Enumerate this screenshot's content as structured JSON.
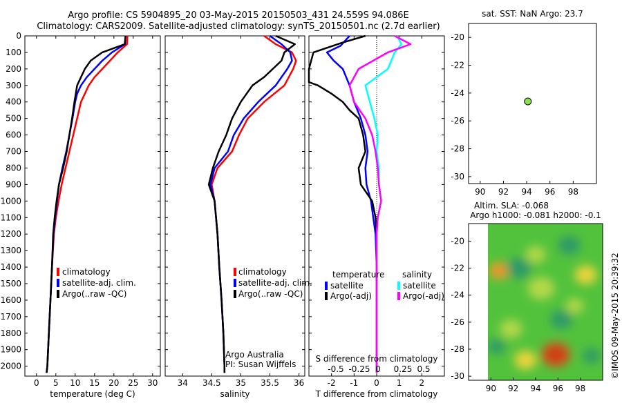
{
  "title_line1": "Argo profile: CS 5904895_20 03-May-2015 20150503_431 24.559S 94.086E",
  "title_line2": "Climatology: CARS2009. Satellite-adjusted climatology: synTS_20150501.nc (2.7d earlier)",
  "credit": "Argo Australia",
  "pi": "PI: Susan Wijffels",
  "stamp": "©IMOS 09-May-2015 20:39:32",
  "colors": {
    "climatology": "#ff0000",
    "satellite": "#0000ff",
    "argo": "#000000",
    "sat_salinity": "#00ffff",
    "argo_adj_salinity": "#ff00ff"
  },
  "chart_data": [
    {
      "id": "temperature",
      "type": "line",
      "xlabel": "temperature (deg C)",
      "ylabel": "",
      "xlim": [
        -3,
        32
      ],
      "ylim": [
        2060,
        0
      ],
      "xticks": [
        0,
        5,
        10,
        15,
        20,
        25,
        30
      ],
      "yticks": [
        0,
        100,
        200,
        300,
        400,
        500,
        600,
        700,
        800,
        900,
        1000,
        1100,
        1200,
        1300,
        1400,
        1500,
        1600,
        1700,
        1800,
        1900,
        2000
      ],
      "legend": [
        "climatology",
        "satellite-adj. clim.",
        "Argo(..raw -QC)"
      ],
      "series": [
        {
          "name": "climatology",
          "color": "red",
          "points": [
            [
              23.5,
              0
            ],
            [
              23.4,
              50
            ],
            [
              21,
              100
            ],
            [
              19,
              150
            ],
            [
              17,
              200
            ],
            [
              15,
              250
            ],
            [
              13.5,
              300
            ],
            [
              12.5,
              350
            ],
            [
              11.5,
              400
            ],
            [
              10.5,
              500
            ],
            [
              9.5,
              600
            ],
            [
              8.5,
              700
            ],
            [
              7.5,
              800
            ],
            [
              6.5,
              900
            ],
            [
              5.7,
              1000
            ],
            [
              5,
              1100
            ],
            [
              4.5,
              1200
            ],
            [
              4,
              1400
            ],
            [
              3.6,
              1600
            ],
            [
              3.2,
              1800
            ],
            [
              2.8,
              2000
            ],
            [
              2.6,
              2040
            ]
          ]
        },
        {
          "name": "satellite-adj. clim.",
          "color": "blue",
          "points": [
            [
              23,
              0
            ],
            [
              22.9,
              50
            ],
            [
              19.5,
              100
            ],
            [
              17,
              150
            ],
            [
              15,
              200
            ],
            [
              13,
              250
            ],
            [
              11.5,
              300
            ],
            [
              10.5,
              350
            ],
            [
              10,
              400
            ],
            [
              9.3,
              500
            ],
            [
              8.5,
              600
            ],
            [
              7.7,
              700
            ],
            [
              6.7,
              800
            ],
            [
              5.8,
              900
            ],
            [
              5.3,
              1000
            ],
            [
              4.8,
              1100
            ],
            [
              4.4,
              1200
            ],
            [
              4,
              1400
            ],
            [
              3.6,
              1600
            ],
            [
              3.2,
              1800
            ],
            [
              2.8,
              2000
            ],
            [
              2.6,
              2040
            ]
          ]
        },
        {
          "name": "Argo(..raw -QC)",
          "color": "black",
          "points": [
            [
              23,
              0
            ],
            [
              22.8,
              50
            ],
            [
              17,
              100
            ],
            [
              14,
              150
            ],
            [
              12.5,
              200
            ],
            [
              11.5,
              250
            ],
            [
              10.5,
              300
            ],
            [
              9.8,
              400
            ],
            [
              9.2,
              500
            ],
            [
              8.5,
              600
            ],
            [
              7.8,
              700
            ],
            [
              6.9,
              800
            ],
            [
              5.8,
              900
            ],
            [
              5.2,
              1000
            ],
            [
              4.7,
              1100
            ],
            [
              4.3,
              1200
            ],
            [
              4,
              1400
            ],
            [
              3.6,
              1600
            ],
            [
              3.2,
              1800
            ],
            [
              2.8,
              2000
            ],
            [
              2.6,
              2040
            ]
          ]
        }
      ]
    },
    {
      "id": "salinity",
      "type": "line",
      "xlabel": "salinity",
      "ylabel": "",
      "xlim": [
        33.7,
        36.1
      ],
      "ylim": [
        2060,
        0
      ],
      "xticks": [
        34,
        34.5,
        35,
        35.5,
        36
      ],
      "legend": [
        "climatology",
        "satellite-adj. clim.",
        "Argo(..raw -QC)"
      ],
      "series": [
        {
          "name": "climatology",
          "color": "red",
          "points": [
            [
              35.4,
              0
            ],
            [
              35.6,
              50
            ],
            [
              35.88,
              100
            ],
            [
              35.95,
              150
            ],
            [
              35.9,
              200
            ],
            [
              35.75,
              300
            ],
            [
              35.4,
              400
            ],
            [
              35.12,
              500
            ],
            [
              34.97,
              600
            ],
            [
              34.85,
              700
            ],
            [
              34.6,
              800
            ],
            [
              34.5,
              900
            ],
            [
              34.55,
              1000
            ],
            [
              34.6,
              1200
            ],
            [
              34.63,
              1400
            ],
            [
              34.67,
              1600
            ],
            [
              34.7,
              1800
            ],
            [
              34.72,
              2000
            ],
            [
              34.72,
              2040
            ]
          ]
        },
        {
          "name": "satellite-adj. clim.",
          "color": "blue",
          "points": [
            [
              35.5,
              0
            ],
            [
              35.7,
              50
            ],
            [
              35.85,
              100
            ],
            [
              35.88,
              150
            ],
            [
              35.8,
              200
            ],
            [
              35.6,
              300
            ],
            [
              35.3,
              400
            ],
            [
              35.05,
              500
            ],
            [
              34.88,
              600
            ],
            [
              34.78,
              700
            ],
            [
              34.55,
              800
            ],
            [
              34.48,
              900
            ],
            [
              34.55,
              1000
            ],
            [
              34.6,
              1200
            ],
            [
              34.63,
              1400
            ],
            [
              34.67,
              1600
            ],
            [
              34.7,
              1800
            ],
            [
              34.72,
              2000
            ],
            [
              34.72,
              2040
            ]
          ]
        },
        {
          "name": "Argo(..raw -QC)",
          "color": "black",
          "points": [
            [
              35.6,
              0
            ],
            [
              35.93,
              50
            ],
            [
              35.75,
              100
            ],
            [
              35.7,
              150
            ],
            [
              35.55,
              200
            ],
            [
              35.4,
              250
            ],
            [
              35.2,
              300
            ],
            [
              35.0,
              400
            ],
            [
              34.85,
              500
            ],
            [
              34.75,
              600
            ],
            [
              34.62,
              700
            ],
            [
              34.52,
              800
            ],
            [
              34.45,
              900
            ],
            [
              34.55,
              1000
            ],
            [
              34.6,
              1200
            ],
            [
              34.63,
              1400
            ],
            [
              34.67,
              1600
            ],
            [
              34.7,
              1800
            ],
            [
              34.72,
              2000
            ],
            [
              34.72,
              2040
            ]
          ]
        }
      ]
    },
    {
      "id": "difference",
      "type": "line",
      "xlabel": "T difference from climatology",
      "xlabel_top": "S difference from climatology",
      "xlim": [
        -3.0,
        3.0
      ],
      "ylim": [
        2060,
        0
      ],
      "xticks": [
        -2,
        -1,
        0,
        1,
        2
      ],
      "s_ticks": [
        "-0.5",
        "-0.25",
        "0",
        "0.25",
        "0.5"
      ],
      "legend_headers": [
        "temperature",
        "salinity"
      ],
      "legend": [
        "satellite",
        "Argo(-adj)",
        "satellite",
        "Argo(-adj)"
      ],
      "series": [
        {
          "name": "temperature satellite",
          "color": "blue",
          "points": [
            [
              -1.2,
              0
            ],
            [
              -1.6,
              60
            ],
            [
              -2.2,
              100
            ],
            [
              -1.9,
              150
            ],
            [
              -1.5,
              200
            ],
            [
              -1.2,
              300
            ],
            [
              -1.0,
              400
            ],
            [
              -0.7,
              500
            ],
            [
              -0.5,
              600
            ],
            [
              -0.4,
              700
            ],
            [
              -0.5,
              800
            ],
            [
              -0.45,
              900
            ],
            [
              -0.25,
              1000
            ],
            [
              -0.15,
              1100
            ],
            [
              -0.05,
              1200
            ],
            [
              0,
              1400
            ],
            [
              0,
              1600
            ],
            [
              0,
              2040
            ]
          ]
        },
        {
          "name": "temperature Argo(-adj)",
          "color": "black",
          "points": [
            [
              -0.5,
              0
            ],
            [
              -1.5,
              40
            ],
            [
              -2.8,
              100
            ],
            [
              -3.0,
              200
            ],
            [
              -3.0,
              280
            ],
            [
              -2.6,
              300
            ],
            [
              -2.0,
              350
            ],
            [
              -1.5,
              400
            ],
            [
              -1.2,
              450
            ],
            [
              -0.8,
              500
            ],
            [
              -0.6,
              600
            ],
            [
              -0.5,
              700
            ],
            [
              -0.8,
              800
            ],
            [
              -0.7,
              900
            ],
            [
              -0.2,
              1000
            ],
            [
              -0.05,
              1100
            ],
            [
              0,
              1200
            ],
            [
              0,
              1400
            ],
            [
              0,
              2040
            ]
          ]
        },
        {
          "name": "salinity satellite",
          "color": "cyan",
          "points": [
            [
              0.9,
              0
            ],
            [
              1.1,
              50
            ],
            [
              0.8,
              100
            ],
            [
              0.5,
              200
            ],
            [
              -0.5,
              300
            ],
            [
              -0.3,
              400
            ],
            [
              -0.1,
              500
            ],
            [
              0.05,
              600
            ],
            [
              0,
              700
            ],
            [
              0.1,
              800
            ],
            [
              0.1,
              900
            ],
            [
              0.2,
              1000
            ],
            [
              0.05,
              1100
            ],
            [
              0,
              1200
            ],
            [
              0,
              1400
            ],
            [
              0,
              2040
            ]
          ]
        },
        {
          "name": "salinity Argo(-adj)",
          "color": "magenta",
          "points": [
            [
              0.8,
              0
            ],
            [
              1.5,
              50
            ],
            [
              0.5,
              100
            ],
            [
              -0.8,
              200
            ],
            [
              -1.2,
              300
            ],
            [
              -1.0,
              400
            ],
            [
              -0.5,
              500
            ],
            [
              -0.2,
              600
            ],
            [
              -0.05,
              700
            ],
            [
              0.05,
              800
            ],
            [
              0.1,
              900
            ],
            [
              0.2,
              1000
            ],
            [
              0.05,
              1100
            ],
            [
              0,
              1200
            ],
            [
              0,
              1400
            ],
            [
              0,
              2040
            ]
          ]
        }
      ]
    },
    {
      "id": "location-sst",
      "type": "scatter",
      "title": "sat. SST: NaN Argo: 23.7",
      "xlim": [
        89,
        100
      ],
      "ylim": [
        -30.5,
        -19
      ],
      "xticks": [
        90,
        92,
        94,
        96,
        98
      ],
      "yticks": [
        -20,
        -22,
        -24,
        -26,
        -28,
        -30
      ],
      "points": [
        [
          94.1,
          -24.6
        ]
      ]
    },
    {
      "id": "altimetry",
      "type": "heatmap",
      "title": "Altim. SLA: -0.068",
      "subtitle": "Argo h1000: -0.081 h2000: -0.1",
      "xlim": [
        88,
        100
      ],
      "ylim": [
        -30.3,
        -18.7
      ],
      "xticks": [
        90,
        92,
        94,
        96,
        98
      ],
      "yticks": [
        -20,
        -22,
        -24,
        -26,
        -28,
        -30
      ],
      "blobs": [
        {
          "x": 90.7,
          "y": -22.2,
          "r": 0.9,
          "v": 0.6
        },
        {
          "x": 95.8,
          "y": -28.4,
          "r": 1.3,
          "v": 0.9
        },
        {
          "x": 93.1,
          "y": -28.8,
          "r": 1.0,
          "v": 0.35
        },
        {
          "x": 91.8,
          "y": -26.5,
          "r": 1.0,
          "v": 0.3
        },
        {
          "x": 98.5,
          "y": -22.5,
          "r": 1.0,
          "v": 0.4
        },
        {
          "x": 94.5,
          "y": -23.5,
          "r": 1.2,
          "v": 0.25
        },
        {
          "x": 97.5,
          "y": -24.8,
          "r": 0.8,
          "v": 0.3
        },
        {
          "x": 92.5,
          "y": -22.0,
          "r": 1.1,
          "v": -0.35
        },
        {
          "x": 97.0,
          "y": -20.3,
          "r": 1.0,
          "v": -0.35
        },
        {
          "x": 96.3,
          "y": -25.8,
          "r": 1.0,
          "v": -0.35
        },
        {
          "x": 90.5,
          "y": -27.8,
          "r": 0.8,
          "v": -0.35
        },
        {
          "x": 99.0,
          "y": -28.5,
          "r": 0.8,
          "v": -0.3
        },
        {
          "x": 94.0,
          "y": -21.0,
          "r": 0.9,
          "v": 0.2
        }
      ]
    }
  ]
}
